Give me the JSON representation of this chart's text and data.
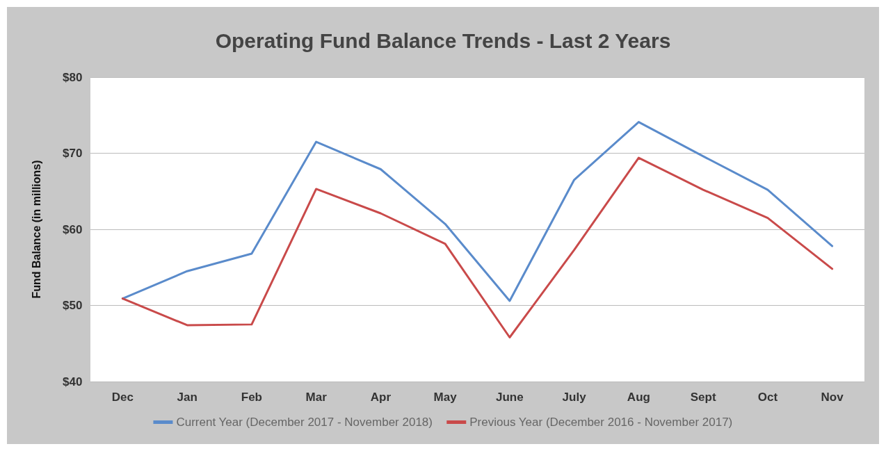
{
  "chart_data": {
    "type": "line",
    "title": "Operating Fund Balance Trends - Last 2 Years",
    "ylabel": "Fund Balance (in millions)",
    "categories": [
      "Dec",
      "Jan",
      "Feb",
      "Mar",
      "Apr",
      "May",
      "June",
      "July",
      "Aug",
      "Sept",
      "Oct",
      "Nov"
    ],
    "series": [
      {
        "name": "Current Year (December 2017 - November 2018)",
        "color": "#5a8bcb",
        "values": [
          50.9,
          54.5,
          56.8,
          71.5,
          67.9,
          60.7,
          50.6,
          66.5,
          74.1,
          69.6,
          65.2,
          57.8
        ]
      },
      {
        "name": "Previous Year (December 2016 - November 2017)",
        "color": "#c94a4a",
        "values": [
          50.9,
          47.4,
          47.5,
          65.3,
          62.1,
          58.1,
          45.8,
          57.3,
          69.4,
          65.2,
          61.5,
          54.8
        ]
      }
    ],
    "ylim": [
      40,
      80
    ],
    "yticks": [
      {
        "value": 40,
        "label": "$40"
      },
      {
        "value": 50,
        "label": "$50"
      },
      {
        "value": 60,
        "label": "$60"
      },
      {
        "value": 70,
        "label": "$70"
      },
      {
        "value": 80,
        "label": "$80"
      }
    ],
    "grid": "y",
    "legend": "bottom",
    "marker": "none",
    "line_style": "solid"
  }
}
